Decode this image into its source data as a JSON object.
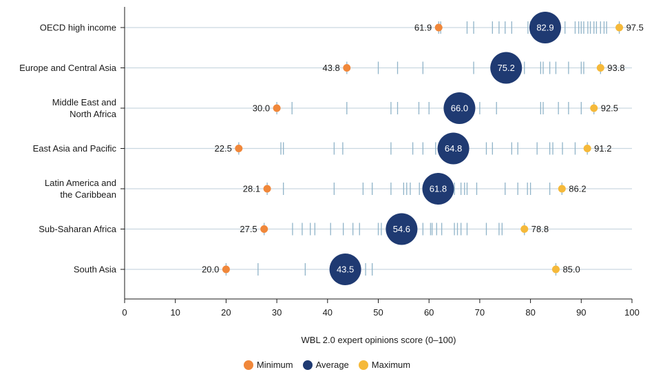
{
  "chart_data": {
    "type": "scatter",
    "xlabel": "WBL 2.0 expert opinions score (0–100)",
    "xlim": [
      0,
      100
    ],
    "xticks": [
      0,
      10,
      20,
      30,
      40,
      50,
      60,
      70,
      80,
      90,
      100
    ],
    "grid": false,
    "legend_position": "bottom-center",
    "legend": [
      {
        "name": "Minimum",
        "color": "#f0873a"
      },
      {
        "name": "Average",
        "color": "#1f3a72"
      },
      {
        "name": "Maximum",
        "color": "#f5b93a"
      }
    ],
    "tick_color": "#8fb3c8",
    "row_line_color": "#c9d7e0",
    "categories": [
      {
        "label": [
          "OECD high income"
        ],
        "min": 61.9,
        "avg": 82.9,
        "max": 97.5,
        "min_label": "61.9",
        "avg_label": "82.9",
        "max_label": "97.5",
        "economies": [
          61.9,
          62.3,
          67.5,
          68.8,
          72.5,
          73.8,
          75.0,
          76.3,
          79.5,
          80.0,
          86.8,
          88.8,
          89.5,
          90.0,
          90.5,
          91.3,
          91.8,
          92.5,
          93.0,
          93.8,
          94.5,
          95.0,
          97.5
        ]
      },
      {
        "label": [
          "Europe and Central Asia"
        ],
        "min": 43.8,
        "avg": 75.2,
        "max": 93.8,
        "min_label": "43.8",
        "avg_label": "75.2",
        "max_label": "93.8",
        "economies": [
          43.8,
          50.0,
          53.8,
          58.8,
          68.8,
          72.5,
          73.8,
          76.3,
          78.8,
          82.0,
          82.5,
          83.8,
          85.0,
          87.5,
          90.0,
          90.5,
          93.8
        ]
      },
      {
        "label": [
          "Middle East and",
          "North Africa"
        ],
        "min": 30.0,
        "avg": 66.0,
        "max": 92.5,
        "min_label": "30.0",
        "avg_label": "66.0",
        "max_label": "92.5",
        "economies": [
          30.0,
          33.0,
          43.8,
          52.5,
          53.8,
          58.0,
          60.0,
          68.8,
          70.0,
          73.3,
          82.0,
          82.5,
          85.5,
          87.5,
          90.0,
          92.5
        ]
      },
      {
        "label": [
          "East Asia and Pacific"
        ],
        "min": 22.5,
        "avg": 64.8,
        "max": 91.2,
        "min_label": "22.5",
        "avg_label": "64.8",
        "max_label": "91.2",
        "economies": [
          22.5,
          30.8,
          31.3,
          41.3,
          43.0,
          52.5,
          56.8,
          58.8,
          61.3,
          67.5,
          71.3,
          72.5,
          76.3,
          77.5,
          81.3,
          83.8,
          84.4,
          86.3,
          88.8,
          91.2
        ]
      },
      {
        "label": [
          "Latin America and",
          "the Caribbean"
        ],
        "min": 28.1,
        "avg": 61.8,
        "max": 86.2,
        "min_label": "28.1",
        "avg_label": "61.8",
        "max_label": "86.2",
        "economies": [
          28.1,
          31.3,
          41.3,
          47.0,
          48.8,
          52.5,
          55.0,
          55.6,
          56.3,
          58.1,
          60.0,
          62.5,
          65.0,
          66.3,
          67.0,
          67.5,
          69.4,
          75.0,
          77.5,
          79.4,
          80.0,
          83.8,
          86.2
        ]
      },
      {
        "label": [
          "Sub-Saharan Africa"
        ],
        "min": 27.5,
        "avg": 54.6,
        "max": 78.8,
        "min_label": "27.5",
        "avg_label": "54.6",
        "max_label": "78.8",
        "economies": [
          27.5,
          33.1,
          35.0,
          36.6,
          37.5,
          40.6,
          43.1,
          45.0,
          46.3,
          50.0,
          50.6,
          53.1,
          56.3,
          58.8,
          60.3,
          60.6,
          61.5,
          62.5,
          65.0,
          65.6,
          66.3,
          67.5,
          71.3,
          73.8,
          74.4,
          78.8
        ]
      },
      {
        "label": [
          "South Asia"
        ],
        "min": 20.0,
        "avg": 43.5,
        "max": 85.0,
        "min_label": "20.0",
        "avg_label": "43.5",
        "max_label": "85.0",
        "economies": [
          20.0,
          26.3,
          35.6,
          41.3,
          47.5,
          48.8,
          85.0
        ]
      }
    ]
  }
}
